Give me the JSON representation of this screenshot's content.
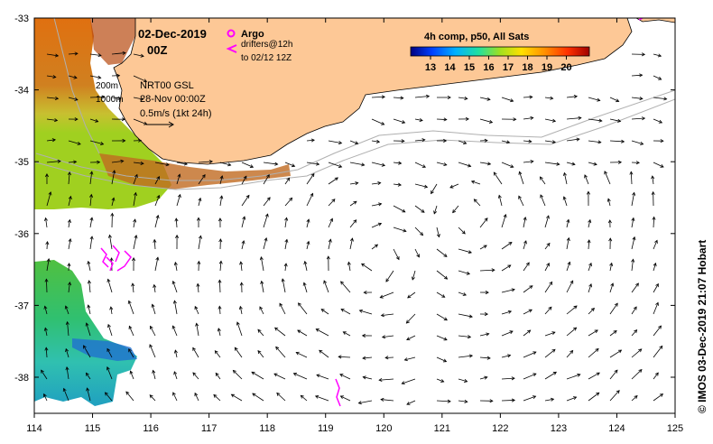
{
  "map": {
    "date": "02-Dec-2019",
    "hour": "00Z",
    "legend": {
      "argo": "Argo",
      "drifters_line1": "drifters@12h",
      "drifters_line2": "to 02/12 12Z",
      "iso200": "200m",
      "iso1000": "1000m",
      "product": "NRT00 GSL",
      "product_date": "28-Nov 00:00Z",
      "scale": "0.5m/s (1kt 24h)"
    },
    "colorbar": {
      "title": "4h comp, p50, All Sats",
      "ticks": [
        "13",
        "14",
        "15",
        "16",
        "17",
        "18",
        "19",
        "20"
      ],
      "colors": [
        "#000080",
        "#0040ff",
        "#00b0ff",
        "#20e0a0",
        "#a0e020",
        "#ffe000",
        "#ff9000",
        "#ff3000",
        "#a00000"
      ]
    },
    "x_ticks": [
      "114",
      "115",
      "116",
      "117",
      "118",
      "119",
      "120",
      "121",
      "122",
      "123",
      "124",
      "125"
    ],
    "y_ticks": [
      "-33",
      "-34",
      "-35",
      "-36",
      "-37",
      "-38"
    ],
    "credit": "© IMOS 03-Dec-2019 21:07 Hobart",
    "colors": {
      "land": "#fdc896",
      "argo": "#ff00ff",
      "drifter": "#ff00ff",
      "isobath": "#b0b0b0"
    }
  }
}
